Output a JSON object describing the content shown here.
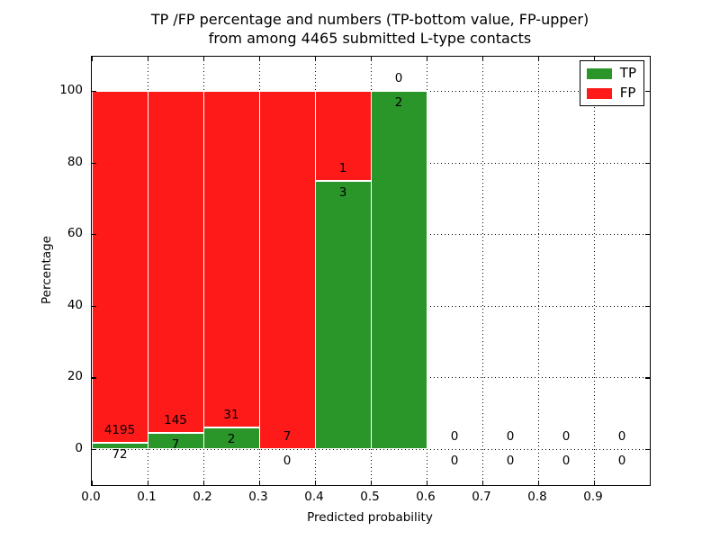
{
  "title": {
    "line1": "TP /FP percentage and numbers (TP-bottom value, FP-upper)",
    "line2": "from among 4465 submitted L-type contacts"
  },
  "chart_data": {
    "type": "bar",
    "stacked": true,
    "percent_normalized": true,
    "title": "TP /FP percentage and numbers (TP-bottom value, FP-upper) from among 4465 submitted L-type contacts",
    "total_contacts": 4465,
    "xlabel": "Predicted probability",
    "ylabel": "Percentage",
    "xlim": [
      0.0,
      1.0
    ],
    "ylim": [
      -10,
      109.5
    ],
    "xtick_labels": [
      "0.0",
      "0.1",
      "0.2",
      "0.3",
      "0.4",
      "0.5",
      "0.6",
      "0.7",
      "0.8",
      "0.9"
    ],
    "xtick_values": [
      0.0,
      0.1,
      0.2,
      0.3,
      0.4,
      0.5,
      0.6,
      0.7,
      0.8,
      0.9
    ],
    "ytick_labels": [
      "0",
      "20",
      "40",
      "60",
      "80",
      "100"
    ],
    "ytick_values": [
      0,
      20,
      40,
      60,
      80,
      100
    ],
    "grid": true,
    "grid_style": "dotted",
    "bins": {
      "starts": [
        0.0,
        0.1,
        0.2,
        0.3,
        0.4,
        0.5,
        0.6,
        0.7,
        0.8,
        0.9
      ],
      "width": 0.1
    },
    "series": [
      {
        "name": "TP",
        "color": "#2a962a",
        "counts": [
          72,
          7,
          2,
          0,
          3,
          2,
          0,
          0,
          0,
          0
        ],
        "percent": [
          1.69,
          4.61,
          6.06,
          0,
          75,
          100,
          0,
          0,
          0,
          0
        ]
      },
      {
        "name": "FP",
        "color": "#ff1a1a",
        "counts": [
          4195,
          145,
          31,
          7,
          1,
          0,
          0,
          0,
          0,
          0
        ],
        "percent": [
          98.31,
          95.39,
          93.94,
          100,
          25,
          0,
          0,
          0,
          0,
          0
        ]
      }
    ],
    "legend": {
      "position": "upper right",
      "entries": [
        "TP",
        "FP"
      ]
    },
    "annotation_note": "FP count printed above green top, TP count printed below green top of each bar"
  },
  "colors": {
    "tp": "#2a962a",
    "fp": "#ff1a1a",
    "grid": "#000000",
    "text": "#000000",
    "background": "#ffffff",
    "bar_edge": "#ffffff"
  }
}
